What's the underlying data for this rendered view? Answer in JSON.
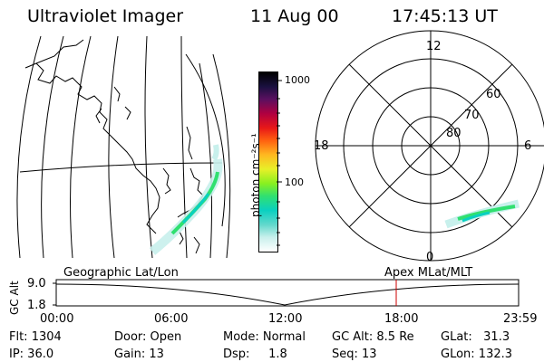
{
  "header": {
    "instrument": "Ultraviolet Imager",
    "date": "11 Aug 00",
    "time": "17:45:13 UT"
  },
  "colorbar": {
    "unit_label": "photon cm⁻²s⁻¹",
    "ticks": [
      "1000",
      "100"
    ],
    "colors": [
      "#ffffff",
      "#c8f0ec",
      "#62d8cc",
      "#0ad0c0",
      "#30e070",
      "#88f020",
      "#e8f028",
      "#ffb820",
      "#ff6010",
      "#e81818",
      "#b00040",
      "#5a1060",
      "#1a1040",
      "#000000"
    ]
  },
  "polar_plot": {
    "mlt_labels": {
      "top": "12",
      "left": "18",
      "right": "6",
      "bottom": "0"
    },
    "lat_labels": [
      "60",
      "70",
      "80"
    ]
  },
  "timeline": {
    "left_title": "Geographic Lat/Lon",
    "right_title": "Apex  MLat/MLT",
    "y_axis_label": "GC Alt",
    "y_ticks": [
      "9.0",
      "1.8"
    ],
    "x_ticks": [
      "00:00",
      "06:00",
      "12:00",
      "18:00",
      "23:59"
    ],
    "current_marker_color": "#cc0000"
  },
  "info": {
    "flt": "Flt: 1304",
    "ip": "IP: 36.0",
    "door": "Door: Open",
    "gain": "Gain: 13",
    "mode": "Mode: Normal",
    "dsp": "Dsp:     1.8",
    "gcalt": "GC Alt: 8.5 Re",
    "seq": "Seq: 13",
    "glat": "GLat:   31.3",
    "glon": "GLon: 132.3"
  }
}
